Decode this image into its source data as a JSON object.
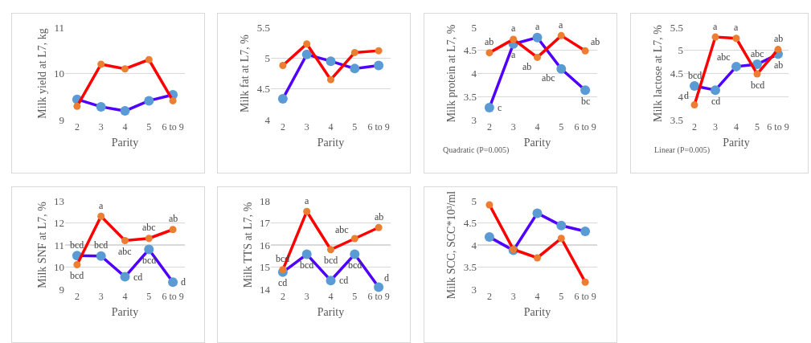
{
  "chart_data": [
    {
      "type": "line",
      "ylabel": "Milk yield at L7, kg",
      "xlabel": "Parity",
      "categories": [
        "2",
        "3",
        "4",
        "5",
        "6 to 9"
      ],
      "ylim": [
        9,
        11
      ],
      "yticks": [
        9,
        10,
        11
      ],
      "grid": "y",
      "marker": "circle",
      "line_style": "solid",
      "series": [
        {
          "color": "#5000ff",
          "colors": [
            "#5b9bd5",
            "#5b9bd5",
            "#5b9bd5",
            "#5b9bd5",
            "#5b9bd5"
          ],
          "values": [
            9.44,
            9.28,
            9.19,
            9.41,
            9.54
          ]
        },
        {
          "color": "#ff0000",
          "colors": [
            "#ed7d31",
            "#ed7d31",
            "#ed7d31",
            "#ed7d31",
            "#ed7d31"
          ],
          "values": [
            9.29,
            10.2,
            10.1,
            10.3,
            9.41
          ]
        }
      ]
    },
    {
      "type": "line",
      "ylabel": "Milk fat at L7, %",
      "xlabel": "Parity",
      "categories": [
        "2",
        "3",
        "4",
        "5",
        "6 to 9"
      ],
      "ylim": [
        4,
        5.5
      ],
      "yticks": [
        4,
        4.5,
        5,
        5.5
      ],
      "grid": "y",
      "marker": "circle",
      "line_style": "solid",
      "series": [
        {
          "color": "#5000ff",
          "colors": [
            "#5b9bd5",
            "#5b9bd5",
            "#5b9bd5",
            "#5b9bd5",
            "#5b9bd5"
          ],
          "values": [
            4.34,
            5.06,
            4.95,
            4.83,
            4.88
          ]
        },
        {
          "color": "#ff0000",
          "colors": [
            "#ed7d31",
            "#ed7d31",
            "#ed7d31",
            "#ed7d31",
            "#ed7d31"
          ],
          "values": [
            4.88,
            5.23,
            4.65,
            5.09,
            5.12
          ]
        }
      ]
    },
    {
      "type": "line",
      "ylabel": "Milk protein at L7, %",
      "xlabel": "Parity",
      "categories": [
        "2",
        "3",
        "4",
        "5",
        "6 to 9"
      ],
      "ylim": [
        3,
        5
      ],
      "yticks": [
        3,
        3.5,
        4,
        4.5,
        5
      ],
      "grid": "y",
      "marker": "circle",
      "line_style": "solid",
      "series": [
        {
          "color": "#5000ff",
          "colors": [
            "#5b9bd5",
            "#5b9bd5",
            "#5b9bd5",
            "#5b9bd5",
            "#5b9bd5"
          ],
          "values": [
            3.26,
            4.64,
            4.78,
            4.1,
            3.64
          ]
        },
        {
          "color": "#ff0000",
          "colors": [
            "#ed7d31",
            "#ed7d31",
            "#ed7d31",
            "#ed7d31",
            "#ed7d31"
          ],
          "values": [
            4.45,
            4.74,
            4.35,
            4.82,
            4.49
          ]
        }
      ],
      "annotations": [
        {
          "text": "c",
          "x": "2",
          "y": 3.26
        },
        {
          "text": "a",
          "x": "3",
          "y": 4.64
        },
        {
          "text": "a",
          "x": "4",
          "y": 4.78
        },
        {
          "text": "abc",
          "x": "5",
          "y": 4.1
        },
        {
          "text": "bc",
          "x": "6 to 9",
          "y": 3.64
        },
        {
          "text": "ab",
          "x": "2",
          "y": 4.45
        },
        {
          "text": "a",
          "x": "3",
          "y": 4.74
        },
        {
          "text": "ab",
          "x": "4",
          "y": 4.35
        },
        {
          "text": "a",
          "x": "5",
          "y": 4.82
        },
        {
          "text": "ab",
          "x": "6 to 9",
          "y": 4.49
        },
        "Quadratic (P=0.005)"
      ]
    },
    {
      "type": "line",
      "ylabel": "Milk lactose at L7, %",
      "xlabel": "Parity",
      "categories": [
        "2",
        "3",
        "4",
        "5",
        "6 to 9"
      ],
      "ylim": [
        3.5,
        5.5
      ],
      "yticks": [
        3.5,
        4,
        4.5,
        5,
        5.5
      ],
      "grid": "y",
      "marker": "circle",
      "line_style": "solid",
      "series": [
        {
          "color": "#5000ff",
          "colors": [
            "#5b9bd5",
            "#5b9bd5",
            "#5b9bd5",
            "#5b9bd5",
            "#5b9bd5"
          ],
          "values": [
            4.23,
            4.14,
            4.65,
            4.7,
            4.92
          ]
        },
        {
          "color": "#ff0000",
          "colors": [
            "#ed7d31",
            "#ed7d31",
            "#ed7d31",
            "#ed7d31",
            "#ed7d31"
          ],
          "values": [
            3.82,
            5.29,
            5.26,
            4.49,
            5.02
          ]
        }
      ],
      "annotations": [
        {
          "text": "bcd",
          "x": "2",
          "y": 4.23
        },
        {
          "text": "cd",
          "x": "3",
          "y": 4.14
        },
        {
          "text": "abc",
          "x": "4",
          "y": 4.65
        },
        {
          "text": "abc",
          "x": "5",
          "y": 4.7
        },
        {
          "text": "ab",
          "x": "6 to 9",
          "y": 4.92
        },
        {
          "text": "d",
          "x": "2",
          "y": 3.82
        },
        {
          "text": "a",
          "x": "3",
          "y": 5.29
        },
        {
          "text": "a",
          "x": "4",
          "y": 5.26
        },
        {
          "text": "bcd",
          "x": "5",
          "y": 4.49
        },
        {
          "text": "ab",
          "x": "6 to 9",
          "y": 5.02
        },
        "Linear (P=0.005)"
      ]
    },
    {
      "type": "line",
      "ylabel": "Milk SNF at L7, %",
      "xlabel": "Parity",
      "categories": [
        "2",
        "3",
        "4",
        "5",
        "6 to 9"
      ],
      "ylim": [
        9,
        13
      ],
      "yticks": [
        9,
        10,
        11,
        12,
        13
      ],
      "grid": "y",
      "marker": "circle",
      "line_style": "solid",
      "series": [
        {
          "color": "#5000ff",
          "colors": [
            "#5b9bd5",
            "#5b9bd5",
            "#5b9bd5",
            "#5b9bd5",
            "#5b9bd5"
          ],
          "values": [
            10.52,
            10.5,
            9.56,
            10.8,
            9.32
          ]
        },
        {
          "color": "#ff0000",
          "colors": [
            "#ed7d31",
            "#ed7d31",
            "#ed7d31",
            "#ed7d31",
            "#ed7d31"
          ],
          "values": [
            10.11,
            12.3,
            11.2,
            11.3,
            11.7
          ]
        }
      ],
      "annotations": [
        {
          "text": "bcd",
          "x": "2",
          "y": 10.52
        },
        {
          "text": "bcd",
          "x": "3",
          "y": 10.5
        },
        {
          "text": "cd",
          "x": "4",
          "y": 9.56
        },
        {
          "text": "bcd",
          "x": "5",
          "y": 10.8
        },
        {
          "text": "d",
          "x": "6 to 9",
          "y": 9.32
        },
        {
          "text": "bcd",
          "x": "2",
          "y": 10.11
        },
        {
          "text": "a",
          "x": "3",
          "y": 12.3
        },
        {
          "text": "abc",
          "x": "4",
          "y": 11.2
        },
        {
          "text": "abc",
          "x": "5",
          "y": 11.3
        },
        {
          "text": "ab",
          "x": "6 to 9",
          "y": 11.7
        }
      ]
    },
    {
      "type": "line",
      "ylabel": "Milk TTS at L7, %",
      "xlabel": "Parity",
      "categories": [
        "2",
        "3",
        "4",
        "5",
        "6 to 9"
      ],
      "ylim": [
        14,
        18
      ],
      "yticks": [
        14,
        15,
        16,
        17,
        18
      ],
      "grid": "y",
      "marker": "circle",
      "line_style": "solid",
      "series": [
        {
          "color": "#5000ff",
          "colors": [
            "#5b9bd5",
            "#5b9bd5",
            "#5b9bd5",
            "#5b9bd5",
            "#5b9bd5"
          ],
          "values": [
            14.77,
            15.58,
            14.39,
            15.58,
            14.09
          ]
        },
        {
          "color": "#ff0000",
          "colors": [
            "#ed7d31",
            "#ed7d31",
            "#ed7d31",
            "#ed7d31",
            "#ed7d31"
          ],
          "values": [
            14.88,
            17.52,
            15.79,
            16.29,
            16.79
          ]
        }
      ],
      "annotations": [
        {
          "text": "cd",
          "x": "2",
          "y": 14.77
        },
        {
          "text": "bcd",
          "x": "3",
          "y": 15.58
        },
        {
          "text": "cd",
          "x": "4",
          "y": 14.39
        },
        {
          "text": "bcd",
          "x": "5",
          "y": 15.58
        },
        {
          "text": "d",
          "x": "6 to 9",
          "y": 14.09
        },
        {
          "text": "bcd",
          "x": "2",
          "y": 14.88
        },
        {
          "text": "a",
          "x": "3",
          "y": 17.52
        },
        {
          "text": "bcd",
          "x": "4",
          "y": 15.79
        },
        {
          "text": "abc",
          "x": "5",
          "y": 16.29
        },
        {
          "text": "ab",
          "x": "6 to 9",
          "y": 16.79
        }
      ]
    },
    {
      "type": "line",
      "ylabel": "Milk SCC, SCC*10³/ml",
      "xlabel": "Parity",
      "categories": [
        "2",
        "3",
        "4",
        "5",
        "6 to 9"
      ],
      "ylim": [
        3,
        5
      ],
      "yticks": [
        3,
        3.5,
        4,
        4.5,
        5
      ],
      "grid": "y",
      "marker": "circle",
      "line_style": "solid",
      "series": [
        {
          "color": "#5000ff",
          "colors": [
            "#5b9bd5",
            "#5b9bd5",
            "#5b9bd5",
            "#5b9bd5",
            "#5b9bd5"
          ],
          "values": [
            4.18,
            3.88,
            4.72,
            4.44,
            4.31
          ]
        },
        {
          "color": "#ff0000",
          "colors": [
            "#ed7d31",
            "#ed7d31",
            "#ed7d31",
            "#ed7d31",
            "#ed7d31"
          ],
          "values": [
            4.91,
            3.9,
            3.71,
            4.15,
            3.16
          ]
        }
      ]
    }
  ]
}
